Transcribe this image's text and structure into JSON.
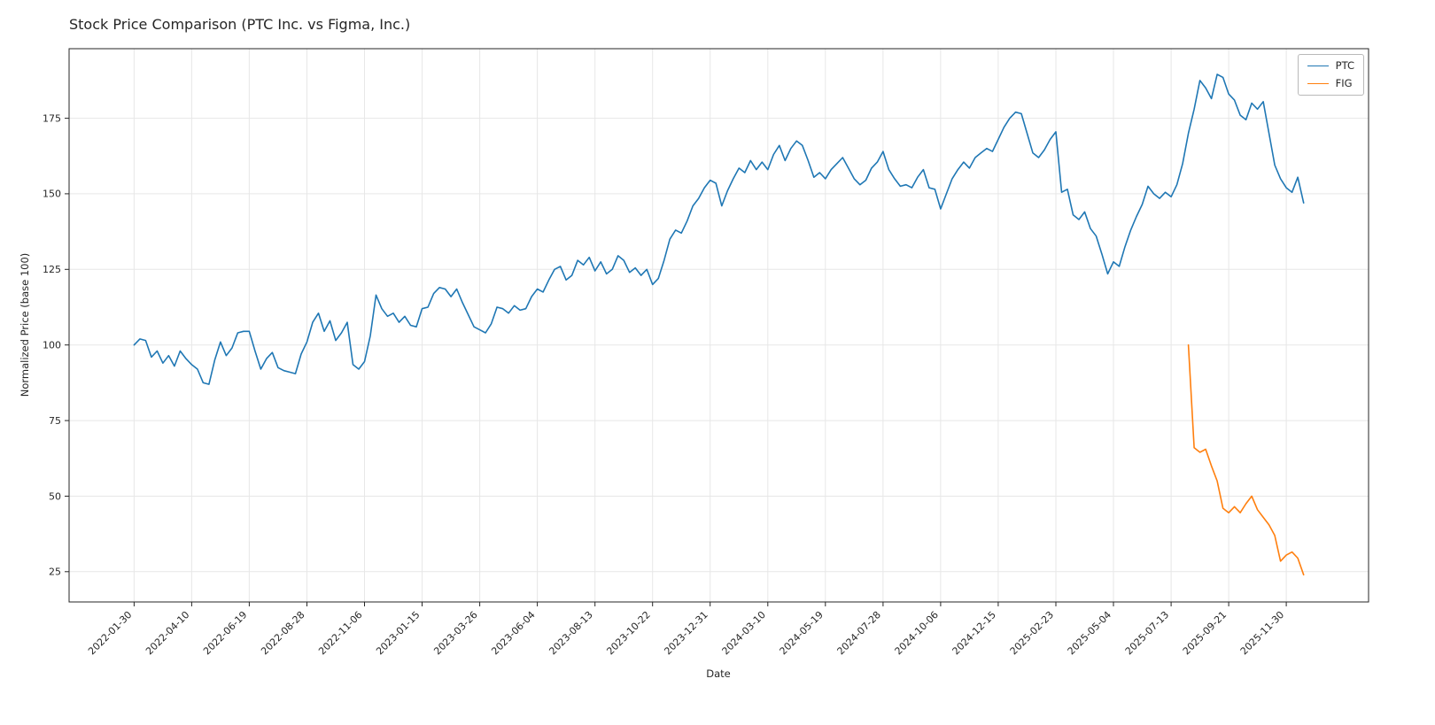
{
  "chart_data": {
    "type": "line",
    "title": "Stock Price Comparison (PTC Inc. vs Figma, Inc.)",
    "xlabel": "Date",
    "ylabel": "Normalized Price (base 100)",
    "legend_position": "upper right",
    "grid": true,
    "y_ticks": [
      25,
      50,
      75,
      100,
      125,
      150,
      175
    ],
    "ylim": [
      15,
      198
    ],
    "x_tick_labels": [
      "2022-01-30",
      "2022-04-10",
      "2022-06-19",
      "2022-08-28",
      "2022-11-06",
      "2023-01-15",
      "2023-03-26",
      "2023-06-04",
      "2023-08-13",
      "2023-10-22",
      "2023-12-31",
      "2024-03-10",
      "2024-05-19",
      "2024-07-28",
      "2024-10-06",
      "2024-12-15",
      "2025-02-23",
      "2025-05-04",
      "2025-07-13",
      "2025-09-21",
      "2025-11-30"
    ],
    "x_tick_interval": 10,
    "total_points": 204,
    "series": [
      {
        "name": "PTC",
        "color": "#1f77b4",
        "start_index": 0,
        "values": [
          100,
          102,
          101.5,
          96,
          98,
          94,
          96.5,
          93,
          98,
          95.5,
          93.5,
          92,
          87.5,
          87,
          95,
          101,
          96.5,
          99,
          104,
          104.5,
          104.5,
          98,
          92,
          95.5,
          97.5,
          92.5,
          91.5,
          91,
          90.5,
          97,
          101,
          107.5,
          110.5,
          104.5,
          108,
          101.5,
          104,
          107.5,
          93.5,
          92,
          94.5,
          103,
          116.5,
          112,
          109.5,
          110.5,
          107.5,
          109.5,
          106.5,
          106,
          112,
          112.5,
          117,
          119,
          118.5,
          116,
          118.5,
          114,
          110,
          106,
          105,
          104,
          107,
          112.5,
          112,
          110.5,
          113,
          111.5,
          112,
          116,
          118.5,
          117.5,
          121.5,
          125,
          126,
          121.5,
          123,
          128,
          126.5,
          129,
          124.5,
          127.5,
          123.5,
          125,
          129.5,
          128,
          124,
          125.5,
          123,
          125,
          120,
          122,
          128,
          135,
          138,
          137,
          141,
          146,
          148.5,
          152,
          154.5,
          153.5,
          146,
          151,
          155,
          158.5,
          157,
          161,
          158,
          160.5,
          158,
          163,
          166,
          161,
          165,
          167.5,
          166,
          161,
          155.5,
          157,
          155,
          158,
          160,
          162,
          158.5,
          155,
          153,
          154.5,
          158.5,
          160.5,
          164,
          158,
          155,
          152.5,
          153,
          152,
          155.5,
          158,
          152,
          151.5,
          145,
          150,
          155,
          158,
          160.5,
          158.5,
          162,
          163.5,
          165,
          164,
          168,
          172,
          175,
          177,
          176.5,
          170,
          163.5,
          162,
          164.5,
          168,
          170.5,
          150.5,
          151.5,
          143,
          141.5,
          144,
          138.5,
          136,
          130,
          123.5,
          127.5,
          126,
          132.5,
          138,
          142.5,
          146.5,
          152.5,
          150,
          148.5,
          150.5,
          149,
          153,
          160,
          170,
          178,
          187.5,
          185,
          181.5,
          189.5,
          188.5,
          183,
          181,
          176,
          174.5,
          180,
          178,
          180.5,
          170,
          159.5,
          155,
          152,
          150.5,
          155.5,
          147
        ]
      },
      {
        "name": "FIG",
        "color": "#ff7f0e",
        "start_index": 183,
        "values": [
          100,
          66,
          64.5,
          65.5,
          60,
          55,
          46,
          44.5,
          46.5,
          44.5,
          47.5,
          50,
          45.5,
          43,
          40.5,
          37,
          28.5,
          30.5,
          31.5,
          29.5,
          24
        ]
      }
    ]
  }
}
